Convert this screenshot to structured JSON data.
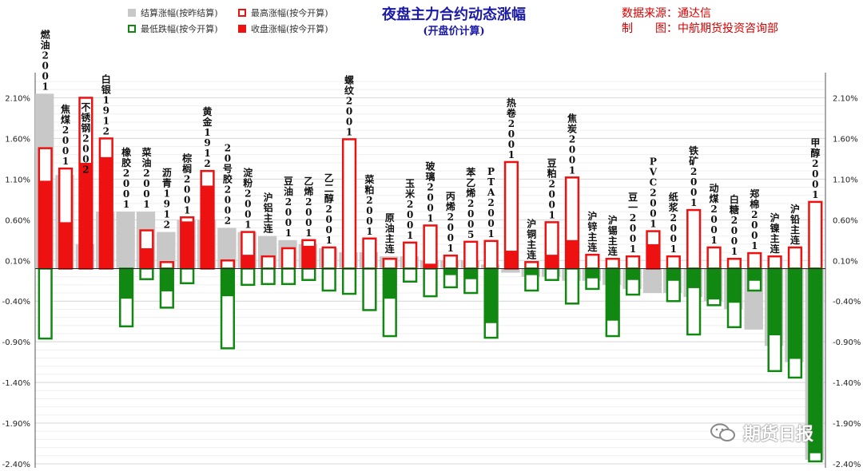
{
  "header": {
    "title": "夜盘主力合约动态涨幅",
    "subtitle": "(开盘价计算)",
    "source_line1": "数据来源：通达信",
    "source_line2": "制　　图：中航期货投资咨询部"
  },
  "legend": {
    "settle": "结算涨幅(按昨结算)",
    "high": "最高涨幅(按今开算)",
    "low": "最低跌幅(按今开算)",
    "close": "收盘涨幅(按今开算)"
  },
  "watermark": "期货日报",
  "colors": {
    "settle": "#c8c8c8",
    "high": "#ee1111",
    "close": "#ee1111",
    "low": "#118811",
    "close_negative": "#118811",
    "title": "#1a1aa6",
    "source": "#d40000"
  },
  "chart_data": {
    "type": "bar",
    "ylim": [
      -2.4,
      2.35
    ],
    "yticks": [
      "2.10%",
      "1.60%",
      "1.10%",
      "0.60%",
      "0.10%",
      "-0.40%",
      "-0.90%",
      "-1.40%",
      "-1.90%",
      "-2.40%"
    ],
    "ytick_values": [
      2.1,
      1.6,
      1.1,
      0.6,
      0.1,
      -0.4,
      -0.9,
      -1.4,
      -1.9,
      -2.4
    ],
    "grid": true,
    "legend_position": "top-left",
    "categories": [
      "燃油2001",
      "焦煤2001",
      "不锈钢2002",
      "白银1912",
      "橡胶2001",
      "菜油2001",
      "沥青1912",
      "棕榈2001",
      "黄金1912",
      "20号胶2002",
      "淀粉2001",
      "沪铝主连",
      "豆油2001",
      "乙烯2001",
      "乙二醇2001",
      "螺纹2001",
      "菜粕2001",
      "原油主连",
      "玉米2001",
      "玻璃2001",
      "丙烯2001",
      "苯乙烯2005",
      "PTA2001",
      "热卷2001",
      "沪铜主连",
      "豆粕2001",
      "焦炭2001",
      "沪锌主连",
      "沪锡主连",
      "豆一2001",
      "PVC2001",
      "纸浆2001",
      "铁矿2001",
      "动煤2001",
      "白糖2001",
      "郑棉2001",
      "沪镍主连",
      "沪铅主连",
      "甲醇2001"
    ],
    "series": [
      {
        "name": "结算涨幅(按昨结算)",
        "values": [
          2.15,
          1.15,
          0.3,
          0.7,
          0.7,
          0.7,
          0.45,
          0.6,
          0.6,
          0.5,
          0.45,
          0.4,
          0.35,
          0.3,
          0.25,
          0.2,
          0.2,
          0.15,
          0.15,
          0.1,
          0.1,
          0.1,
          0.05,
          -0.05,
          -0.1,
          -0.1,
          -0.15,
          -0.15,
          -0.2,
          -0.25,
          -0.3,
          -0.3,
          -0.35,
          -0.4,
          -0.5,
          -0.75,
          -0.95,
          -1.15,
          -2.35
        ]
      },
      {
        "name": "最高涨幅(按今开算)",
        "values": [
          1.48,
          1.23,
          2.1,
          1.6,
          0.0,
          0.47,
          0.08,
          0.63,
          1.2,
          0.1,
          0.45,
          0.15,
          0.25,
          0.35,
          0.26,
          1.59,
          0.37,
          0.12,
          0.32,
          0.53,
          0.16,
          0.33,
          0.34,
          1.31,
          0.08,
          0.57,
          1.12,
          0.17,
          0.12,
          0.15,
          0.46,
          0.15,
          0.72,
          0.26,
          0.12,
          0.19,
          0.15,
          0.26,
          0.82
        ]
      },
      {
        "name": "最低跌幅(按今开算)",
        "values": [
          -0.86,
          0.0,
          0.0,
          0.0,
          -0.71,
          -0.13,
          -0.48,
          -0.18,
          0.0,
          -0.98,
          -0.2,
          -0.19,
          -0.19,
          -0.14,
          -0.27,
          -0.31,
          -0.51,
          -0.83,
          -0.16,
          -0.34,
          -0.23,
          -0.3,
          -0.85,
          0.0,
          -0.27,
          -0.14,
          -0.43,
          -0.25,
          -0.83,
          -0.32,
          0.0,
          -0.4,
          -0.81,
          -0.45,
          -0.72,
          -0.27,
          -1.26,
          -1.34,
          -2.37
        ]
      },
      {
        "name": "收盘涨幅(按今开算)",
        "values": [
          1.08,
          0.57,
          1.3,
          1.37,
          -0.37,
          0.25,
          -0.28,
          0.58,
          1.02,
          -0.34,
          0.17,
          0.0,
          0.0,
          0.28,
          0.0,
          0.0,
          0.0,
          -0.37,
          0.0,
          0.06,
          -0.08,
          -0.13,
          -0.67,
          0.22,
          -0.08,
          0.17,
          0.35,
          -0.12,
          -0.64,
          -0.14,
          0.3,
          -0.15,
          -0.24,
          -0.38,
          -0.42,
          -0.15,
          -0.82,
          -1.11,
          -2.27
        ]
      }
    ]
  }
}
